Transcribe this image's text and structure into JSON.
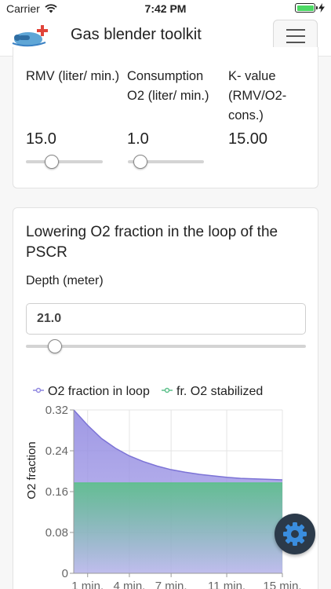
{
  "status_bar": {
    "carrier": "Carrier",
    "time": "7:42 PM"
  },
  "navbar": {
    "brand": "Gas blender toolkit",
    "menu_icon": "hamburger-menu-icon",
    "logo_icon": "diver-logo-icon"
  },
  "params": [
    {
      "label": "RMV (liter/ min.)",
      "value": "15.0",
      "slider_fraction": 0.33
    },
    {
      "label": "Consumption O2 (liter/ min.)",
      "value": "1.0",
      "slider_fraction": 0.16
    },
    {
      "label": "K- value (RMV/O2- cons.)",
      "value": "15.00"
    }
  ],
  "loop_card": {
    "title": "Lowering O2 fraction in the loop of the PSCR",
    "depth_label": "Depth (meter)",
    "depth_value": "21.0",
    "depth_slider_fraction": 0.1
  },
  "colors": {
    "loop": "#8f87e0",
    "stabilized": "#5cc08a",
    "fab": "#2b3a4a",
    "fab_icon": "#3a8dde"
  },
  "fab_icon": "gear-icon",
  "chart_data": {
    "type": "area",
    "ylabel": "O2 fraction",
    "xlabel": "",
    "ylim": [
      0,
      0.32
    ],
    "yticks": [
      "0",
      "0.08",
      "0.16",
      "0.24",
      "0.32"
    ],
    "ytick_values": [
      0,
      0.08,
      0.16,
      0.24,
      0.32
    ],
    "xlim": [
      0,
      15
    ],
    "xticks": [
      "1 min.",
      "4 min.",
      "7 min.",
      "11 min.",
      "15 min."
    ],
    "xtick_values": [
      1,
      4,
      7,
      11,
      15
    ],
    "series": [
      {
        "name": "O2 fraction in loop",
        "x": [
          0,
          1,
          2,
          3,
          4,
          5,
          6,
          7,
          8,
          9,
          10,
          11,
          12,
          13,
          14,
          15
        ],
        "values": [
          0.32,
          0.29,
          0.264,
          0.245,
          0.23,
          0.219,
          0.21,
          0.203,
          0.198,
          0.194,
          0.191,
          0.188,
          0.186,
          0.185,
          0.184,
          0.183
        ]
      },
      {
        "name": "fr. O2 stabilized",
        "x": [
          0,
          15
        ],
        "values": [
          0.177,
          0.177
        ]
      }
    ]
  }
}
